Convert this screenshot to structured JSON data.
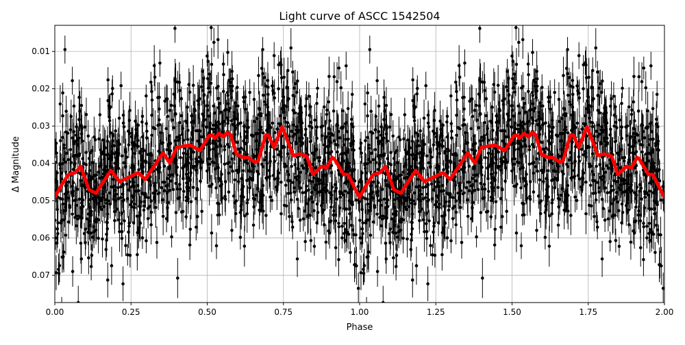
{
  "chart_data": {
    "type": "scatter",
    "title": "Light curve of ASCC 1542504",
    "xlabel": "Phase",
    "ylabel": "Δ Magnitude",
    "xlim": [
      0,
      2
    ],
    "ylim": [
      0.0773,
      0.003
    ],
    "y_inverted": true,
    "grid": true,
    "xticks": [
      0,
      0.25,
      0.5,
      0.75,
      1.0,
      1.25,
      1.5,
      1.75,
      2.0
    ],
    "xtick_labels": [
      "0.00",
      "0.25",
      "0.50",
      "0.75",
      "1.00",
      "1.25",
      "1.50",
      "1.75",
      "2.00"
    ],
    "yticks": [
      0.01,
      0.02,
      0.03,
      0.04,
      0.05,
      0.06,
      0.07
    ],
    "ytick_labels": [
      "0.01",
      "0.02",
      "0.03",
      "0.04",
      "0.05",
      "0.06",
      "0.07"
    ],
    "series": [
      {
        "style": "black points with error bars",
        "color": "#000000",
        "repeats_with_period": 1
      },
      {
        "style": "red binned curve",
        "color": "#ff0000",
        "repeats_with_period": 1,
        "x": [
          0,
          0.022,
          0.045,
          0.067,
          0.085,
          0.112,
          0.135,
          0.184,
          0.213,
          0.274,
          0.297,
          0.355,
          0.378,
          0.4,
          0.445,
          0.476,
          0.506,
          0.517,
          0.524,
          0.539,
          0.555,
          0.566,
          0.578,
          0.596,
          0.618,
          0.634,
          0.656,
          0.667,
          0.692,
          0.701,
          0.719,
          0.746,
          0.782,
          0.804,
          0.827,
          0.847,
          0.876,
          0.892,
          0.91,
          0.917,
          0.948,
          0.962,
          0.982,
          1.0
        ],
        "y": [
          0.0491,
          0.0458,
          0.043,
          0.0425,
          0.0408,
          0.047,
          0.048,
          0.0419,
          0.0449,
          0.0425,
          0.0443,
          0.0372,
          0.0399,
          0.0357,
          0.0351,
          0.0366,
          0.0326,
          0.0324,
          0.0333,
          0.032,
          0.0329,
          0.0317,
          0.0324,
          0.0375,
          0.0384,
          0.0384,
          0.0397,
          0.0394,
          0.0324,
          0.0324,
          0.0357,
          0.0302,
          0.0379,
          0.0375,
          0.0381,
          0.043,
          0.0408,
          0.0412,
          0.0384,
          0.0388,
          0.043,
          0.043,
          0.0463,
          0.0491
        ]
      }
    ]
  }
}
